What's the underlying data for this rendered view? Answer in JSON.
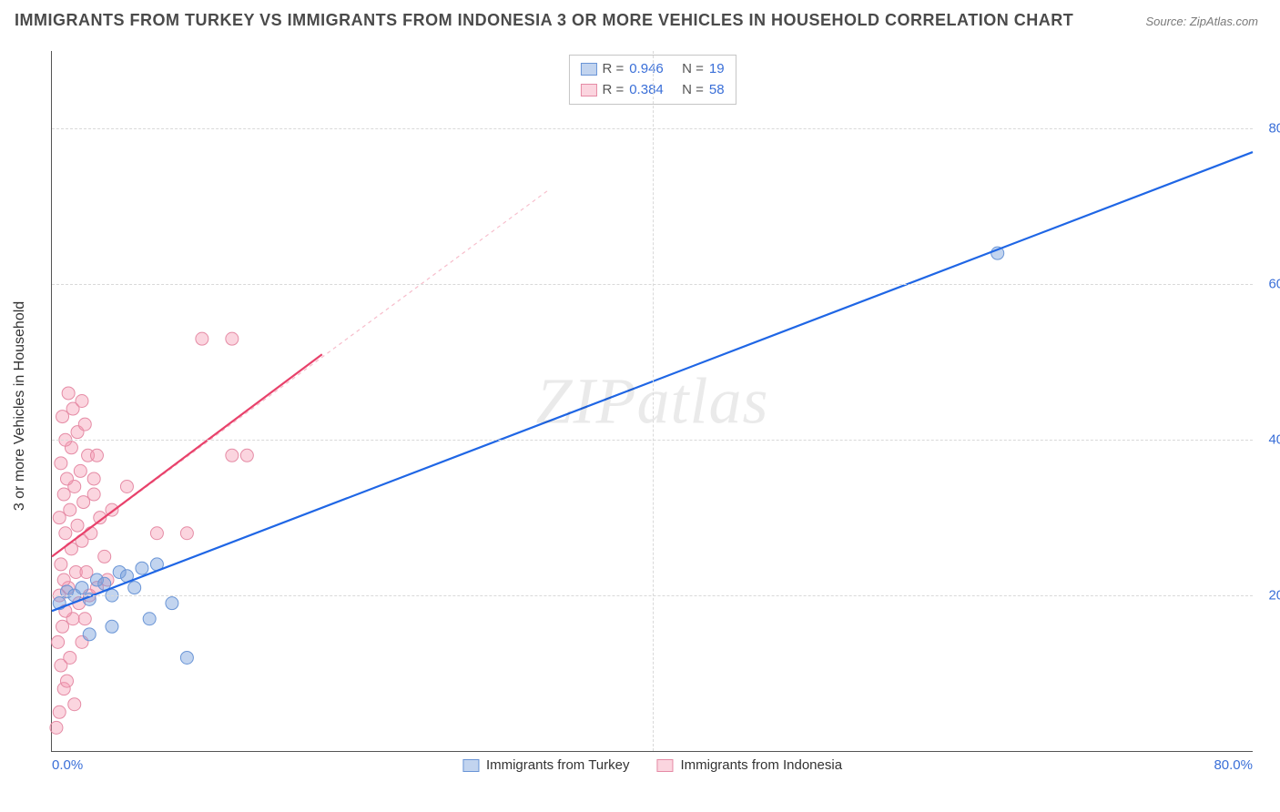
{
  "title": "IMMIGRANTS FROM TURKEY VS IMMIGRANTS FROM INDONESIA 3 OR MORE VEHICLES IN HOUSEHOLD CORRELATION CHART",
  "source": "Source: ZipAtlas.com",
  "watermark": "ZIPatlas",
  "yaxis_title": "3 or more Vehicles in Household",
  "chart": {
    "type": "scatter",
    "xlim": [
      0,
      80
    ],
    "ylim": [
      0,
      90
    ],
    "x_ticks": [
      0,
      40,
      80
    ],
    "x_tick_labels": [
      "0.0%",
      "",
      "80.0%"
    ],
    "y_ticks": [
      20,
      40,
      60,
      80
    ],
    "y_tick_labels": [
      "20.0%",
      "40.0%",
      "60.0%",
      "80.0%"
    ],
    "x_grid_at": [
      40
    ],
    "background_color": "#ffffff",
    "grid_color": "#d9d9d9",
    "axis_color": "#555555",
    "label_color": "#3a6fd8",
    "marker_radius": 7
  },
  "series": [
    {
      "name": "Immigrants from Turkey",
      "color_fill": "rgba(120,160,220,0.45)",
      "color_stroke": "#6a95d6",
      "trend_color": "#1f66e5",
      "R": "0.946",
      "N": "19",
      "trend_solid": {
        "x1": 0,
        "y1": 18,
        "x2": 80,
        "y2": 77
      },
      "trend_dash": {
        "x1": 0,
        "y1": 18,
        "x2": 80,
        "y2": 77
      },
      "points": [
        [
          0.5,
          19
        ],
        [
          1,
          20.5
        ],
        [
          1.5,
          20
        ],
        [
          2,
          21
        ],
        [
          2.5,
          19.5
        ],
        [
          3,
          22
        ],
        [
          3.5,
          21.5
        ],
        [
          4,
          20
        ],
        [
          4.5,
          23
        ],
        [
          5,
          22.5
        ],
        [
          5.5,
          21
        ],
        [
          6,
          23.5
        ],
        [
          7,
          24
        ],
        [
          8,
          19
        ],
        [
          9,
          12
        ],
        [
          6.5,
          17
        ],
        [
          4,
          16
        ],
        [
          2.5,
          15
        ],
        [
          63,
          64
        ]
      ]
    },
    {
      "name": "Immigrants from Indonesia",
      "color_fill": "rgba(245,150,175,0.40)",
      "color_stroke": "#e58ba5",
      "trend_color": "#e8416b",
      "R": "0.384",
      "N": "58",
      "trend_solid": {
        "x1": 0,
        "y1": 25,
        "x2": 18,
        "y2": 51
      },
      "trend_dash": {
        "x1": 0,
        "y1": 25,
        "x2": 33,
        "y2": 72
      },
      "points": [
        [
          0.3,
          3
        ],
        [
          0.5,
          5
        ],
        [
          0.8,
          8
        ],
        [
          1,
          9
        ],
        [
          0.6,
          11
        ],
        [
          1.2,
          12
        ],
        [
          0.4,
          14
        ],
        [
          2,
          14
        ],
        [
          0.7,
          16
        ],
        [
          1.4,
          17
        ],
        [
          2.2,
          17
        ],
        [
          0.9,
          18
        ],
        [
          1.8,
          19
        ],
        [
          0.5,
          20
        ],
        [
          2.5,
          20
        ],
        [
          1.1,
          21
        ],
        [
          3,
          21
        ],
        [
          0.8,
          22
        ],
        [
          1.6,
          23
        ],
        [
          2.3,
          23
        ],
        [
          0.6,
          24
        ],
        [
          3.5,
          25
        ],
        [
          1.3,
          26
        ],
        [
          2,
          27
        ],
        [
          0.9,
          28
        ],
        [
          1.7,
          29
        ],
        [
          2.6,
          28
        ],
        [
          0.5,
          30
        ],
        [
          1.2,
          31
        ],
        [
          2.1,
          32
        ],
        [
          0.8,
          33
        ],
        [
          1.5,
          34
        ],
        [
          2.8,
          33
        ],
        [
          1,
          35
        ],
        [
          1.9,
          36
        ],
        [
          0.6,
          37
        ],
        [
          2.4,
          38
        ],
        [
          1.3,
          39
        ],
        [
          3,
          38
        ],
        [
          0.9,
          40
        ],
        [
          1.7,
          41
        ],
        [
          2.2,
          42
        ],
        [
          0.7,
          43
        ],
        [
          1.4,
          44
        ],
        [
          2,
          45
        ],
        [
          1.1,
          46
        ],
        [
          7,
          28
        ],
        [
          9,
          28
        ],
        [
          12,
          38
        ],
        [
          13,
          38
        ],
        [
          10,
          53
        ],
        [
          12,
          53
        ],
        [
          5,
          34
        ],
        [
          4,
          31
        ],
        [
          3.2,
          30
        ],
        [
          2.8,
          35
        ],
        [
          3.7,
          22
        ],
        [
          1.5,
          6
        ]
      ]
    }
  ],
  "legend_top": {
    "r_label": "R =",
    "n_label": "N ="
  },
  "legend_bottom": [
    "Immigrants from Turkey",
    "Immigrants from Indonesia"
  ]
}
